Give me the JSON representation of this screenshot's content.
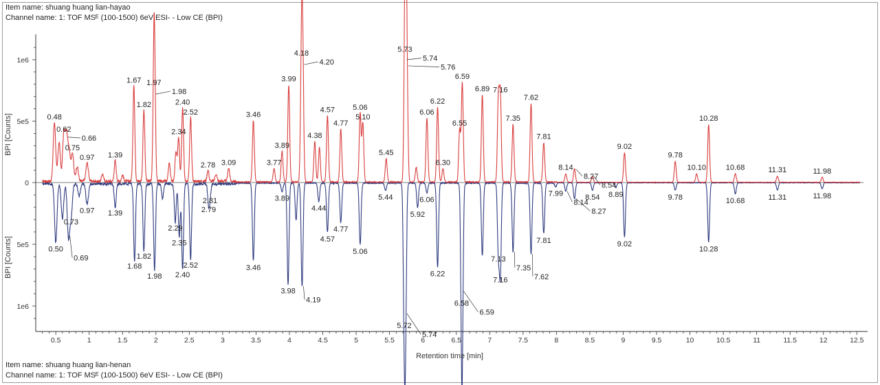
{
  "header_top": {
    "item": "Item name: shuang huang lian-hayao",
    "channel": "Channel name: 1: TOF MSᴱ (100-1500) 6eV ESI- - Low CE (BPI)"
  },
  "header_bottom": {
    "item": "Item name: shuang huang lian-henan",
    "channel": "Channel name: 1: TOF MSᴱ (100-1500) 6eV ESI- - Low CE (BPI)"
  },
  "colors": {
    "top_trace": "#d93c3c",
    "bottom_trace": "#2e3a7e",
    "axis": "#333333"
  },
  "chart_data": {
    "type": "line",
    "xlabel": "Retention time [min]",
    "ylabel_top": "BPI [Counts]",
    "ylabel_bottom": "BPI [Counts]",
    "xlim": [
      0.2,
      12.6
    ],
    "ylim_top": [
      0,
      1200000
    ],
    "ylim_bottom": [
      0,
      1150000
    ],
    "x_ticks": [
      "0.5",
      "1",
      "1.5",
      "2",
      "2.5",
      "3",
      "3.5",
      "4",
      "4.5",
      "5",
      "5.5",
      "6",
      "6.5",
      "7",
      "7.5",
      "8",
      "8.5",
      "9",
      "9.5",
      "10",
      "10.5",
      "11",
      "11.5",
      "12",
      "12.5"
    ],
    "y_ticks_top": [
      {
        "v": 0,
        "label": "0"
      },
      {
        "v": 500000,
        "label": "5e5"
      },
      {
        "v": 1000000,
        "label": "1e6"
      }
    ],
    "y_ticks_bottom": [
      {
        "v": 500000,
        "label": "5e5"
      },
      {
        "v": 1000000,
        "label": "1e6"
      }
    ],
    "series": [
      {
        "name": "shuang huang lian-hayao",
        "direction": "up",
        "peaks": [
          {
            "x": 0.48,
            "y": 480000,
            "label": "0.48"
          },
          {
            "x": 0.55,
            "y": 320000
          },
          {
            "x": 0.62,
            "y": 380000,
            "label": "0.62"
          },
          {
            "x": 0.66,
            "y": 370000,
            "label": "0.66"
          },
          {
            "x": 0.7,
            "y": 250000
          },
          {
            "x": 0.75,
            "y": 230000,
            "label": "0.75"
          },
          {
            "x": 0.82,
            "y": 120000
          },
          {
            "x": 0.97,
            "y": 150000,
            "label": "0.97"
          },
          {
            "x": 1.2,
            "y": 60000
          },
          {
            "x": 1.39,
            "y": 170000,
            "label": "1.39"
          },
          {
            "x": 1.5,
            "y": 50000
          },
          {
            "x": 1.67,
            "y": 780000,
            "label": "1.67"
          },
          {
            "x": 1.82,
            "y": 580000,
            "label": "1.82"
          },
          {
            "x": 1.97,
            "y": 760000,
            "label": "1.97"
          },
          {
            "x": 1.98,
            "y": 720000,
            "label": "1.98"
          },
          {
            "x": 2.2,
            "y": 150000
          },
          {
            "x": 2.3,
            "y": 230000
          },
          {
            "x": 2.34,
            "y": 360000,
            "label": "2.34"
          },
          {
            "x": 2.4,
            "y": 600000,
            "label": "2.40"
          },
          {
            "x": 2.52,
            "y": 520000,
            "label": "2.52"
          },
          {
            "x": 2.78,
            "y": 90000,
            "label": "2.78"
          },
          {
            "x": 2.9,
            "y": 60000
          },
          {
            "x": 3.09,
            "y": 110000,
            "label": "3.09"
          },
          {
            "x": 3.46,
            "y": 500000,
            "label": "3.46"
          },
          {
            "x": 3.77,
            "y": 110000,
            "label": "3.77"
          },
          {
            "x": 3.89,
            "y": 250000,
            "label": "3.89"
          },
          {
            "x": 3.99,
            "y": 790000,
            "label": "3.99"
          },
          {
            "x": 4.18,
            "y": 1000000,
            "label": "4.18"
          },
          {
            "x": 4.2,
            "y": 960000,
            "label": "4.20"
          },
          {
            "x": 4.38,
            "y": 330000,
            "label": "4.38"
          },
          {
            "x": 4.45,
            "y": 280000
          },
          {
            "x": 4.57,
            "y": 540000,
            "label": "4.57"
          },
          {
            "x": 4.77,
            "y": 430000,
            "label": "4.77"
          },
          {
            "x": 5.06,
            "y": 560000,
            "label": "5.06"
          },
          {
            "x": 5.1,
            "y": 480000,
            "label": "5.10"
          },
          {
            "x": 5.45,
            "y": 190000,
            "label": "5.45"
          },
          {
            "x": 5.73,
            "y": 1030000,
            "label": "5.73"
          },
          {
            "x": 5.74,
            "y": 1000000,
            "label": "5.74"
          },
          {
            "x": 5.76,
            "y": 950000,
            "label": "5.76"
          },
          {
            "x": 5.9,
            "y": 120000
          },
          {
            "x": 6.06,
            "y": 520000,
            "label": "6.06"
          },
          {
            "x": 6.22,
            "y": 610000,
            "label": "6.22"
          },
          {
            "x": 6.3,
            "y": 110000,
            "label": "6.30"
          },
          {
            "x": 6.55,
            "y": 430000,
            "label": "6.55"
          },
          {
            "x": 6.59,
            "y": 810000,
            "label": "6.59"
          },
          {
            "x": 6.89,
            "y": 710000,
            "label": "6.89"
          },
          {
            "x": 7.13,
            "y": 680000
          },
          {
            "x": 7.16,
            "y": 700000,
            "label": "7.16"
          },
          {
            "x": 7.35,
            "y": 470000,
            "label": "7.35"
          },
          {
            "x": 7.62,
            "y": 640000,
            "label": "7.62"
          },
          {
            "x": 7.81,
            "y": 320000,
            "label": "7.81"
          },
          {
            "x": 8.14,
            "y": 70000,
            "label": "8.14"
          },
          {
            "x": 8.27,
            "y": 110000,
            "label": "8.27"
          },
          {
            "x": 8.54,
            "y": 50000,
            "label": "8.54"
          },
          {
            "x": 9.02,
            "y": 240000,
            "label": "9.02"
          },
          {
            "x": 9.78,
            "y": 170000,
            "label": "9.78"
          },
          {
            "x": 10.1,
            "y": 70000,
            "label": "10.10"
          },
          {
            "x": 10.28,
            "y": 470000,
            "label": "10.28"
          },
          {
            "x": 10.68,
            "y": 70000,
            "label": "10.68"
          },
          {
            "x": 11.31,
            "y": 50000,
            "label": "11.31"
          },
          {
            "x": 11.98,
            "y": 40000,
            "label": "11.98"
          }
        ]
      },
      {
        "name": "shuang huang lian-henan",
        "direction": "down",
        "peaks": [
          {
            "x": 0.5,
            "y": 480000,
            "label": "0.50"
          },
          {
            "x": 0.6,
            "y": 280000
          },
          {
            "x": 0.69,
            "y": 430000,
            "label": "0.69"
          },
          {
            "x": 0.73,
            "y": 260000,
            "label": "0.73"
          },
          {
            "x": 0.85,
            "y": 100000
          },
          {
            "x": 0.97,
            "y": 170000,
            "label": "0.97"
          },
          {
            "x": 1.39,
            "y": 190000,
            "label": "1.39"
          },
          {
            "x": 1.68,
            "y": 620000,
            "label": "1.68"
          },
          {
            "x": 1.82,
            "y": 540000,
            "label": "1.82"
          },
          {
            "x": 1.98,
            "y": 700000,
            "label": "1.98"
          },
          {
            "x": 2.1,
            "y": 120000
          },
          {
            "x": 2.29,
            "y": 310000,
            "label": "2.29"
          },
          {
            "x": 2.35,
            "y": 430000,
            "label": "2.35"
          },
          {
            "x": 2.4,
            "y": 690000,
            "label": "2.40"
          },
          {
            "x": 2.52,
            "y": 610000,
            "label": "2.52"
          },
          {
            "x": 2.79,
            "y": 160000,
            "label": "2.79"
          },
          {
            "x": 2.81,
            "y": 90000,
            "label": "2.81"
          },
          {
            "x": 3.46,
            "y": 630000,
            "label": "3.46"
          },
          {
            "x": 3.89,
            "y": 70000,
            "label": "3.89"
          },
          {
            "x": 3.98,
            "y": 820000,
            "label": "3.98"
          },
          {
            "x": 4.1,
            "y": 300000
          },
          {
            "x": 4.19,
            "y": 840000,
            "label": "4.19"
          },
          {
            "x": 4.44,
            "y": 150000,
            "label": "4.44"
          },
          {
            "x": 4.57,
            "y": 400000,
            "label": "4.57"
          },
          {
            "x": 4.77,
            "y": 320000,
            "label": "4.77"
          },
          {
            "x": 5.06,
            "y": 500000,
            "label": "5.06"
          },
          {
            "x": 5.44,
            "y": 60000,
            "label": "5.44"
          },
          {
            "x": 5.72,
            "y": 1100000,
            "label": "5.72"
          },
          {
            "x": 5.74,
            "y": 1060000,
            "label": "5.74"
          },
          {
            "x": 5.92,
            "y": 200000,
            "label": "5.92"
          },
          {
            "x": 6.06,
            "y": 80000,
            "label": "6.06"
          },
          {
            "x": 6.22,
            "y": 680000,
            "label": "6.22"
          },
          {
            "x": 6.58,
            "y": 920000,
            "label": "6.58"
          },
          {
            "x": 6.59,
            "y": 880000,
            "label": "6.59"
          },
          {
            "x": 6.89,
            "y": 590000
          },
          {
            "x": 7.13,
            "y": 560000,
            "label": "7.13"
          },
          {
            "x": 7.16,
            "y": 730000,
            "label": "7.16"
          },
          {
            "x": 7.35,
            "y": 560000,
            "label": "7.35"
          },
          {
            "x": 7.62,
            "y": 580000,
            "label": "7.62"
          },
          {
            "x": 7.81,
            "y": 410000,
            "label": "7.81"
          },
          {
            "x": 7.99,
            "y": 30000,
            "label": "7.99"
          },
          {
            "x": 8.14,
            "y": 70000,
            "label": "8.14"
          },
          {
            "x": 8.27,
            "y": 130000,
            "label": "8.27"
          },
          {
            "x": 8.54,
            "y": 60000,
            "label": "8.54"
          },
          {
            "x": 8.89,
            "y": 40000,
            "label": "8.89"
          },
          {
            "x": 9.02,
            "y": 440000,
            "label": "9.02"
          },
          {
            "x": 9.78,
            "y": 60000,
            "label": "9.78"
          },
          {
            "x": 10.28,
            "y": 480000,
            "label": "10.28"
          },
          {
            "x": 10.68,
            "y": 90000,
            "label": "10.68"
          },
          {
            "x": 11.31,
            "y": 60000,
            "label": "11.31"
          },
          {
            "x": 11.98,
            "y": 50000,
            "label": "11.98"
          }
        ]
      }
    ]
  }
}
